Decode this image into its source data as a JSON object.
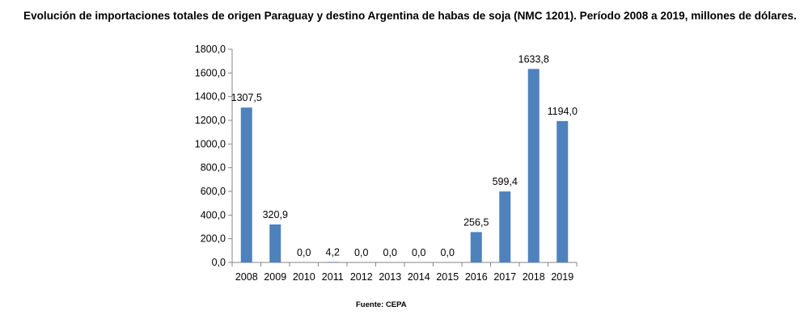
{
  "title": "Evolución de importaciones totales de origen Paraguay y destino Argentina de habas de soja (NMC 1201). Período 2008 a 2019, millones de dólares.",
  "source": "Fuente: CEPA",
  "chart_data": {
    "type": "bar",
    "title": "Evolución de importaciones totales de origen Paraguay y destino Argentina de habas de soja (NMC 1201). Período 2008 a 2019, millones de dólares.",
    "xlabel": "",
    "ylabel": "",
    "categories": [
      "2008",
      "2009",
      "2010",
      "2011",
      "2012",
      "2013",
      "2014",
      "2015",
      "2016",
      "2017",
      "2018",
      "2019"
    ],
    "values": [
      1307.5,
      320.9,
      0.0,
      4.2,
      0.0,
      0.0,
      0.0,
      0.0,
      256.5,
      599.4,
      1633.8,
      1194.0
    ],
    "value_labels": [
      "1307,5",
      "320,9",
      "0,0",
      "4,2",
      "0,0",
      "0,0",
      "0,0",
      "0,0",
      "256,5",
      "599,4",
      "1633,8",
      "1194,0"
    ],
    "yticks": [
      "0,0",
      "200,0",
      "400,0",
      "600,0",
      "800,0",
      "1000,0",
      "1200,0",
      "1400,0",
      "1600,0",
      "1800,0"
    ],
    "ylim": [
      0,
      1800
    ],
    "grid": false,
    "legend": "none",
    "bar_color": "#4f81bd"
  }
}
